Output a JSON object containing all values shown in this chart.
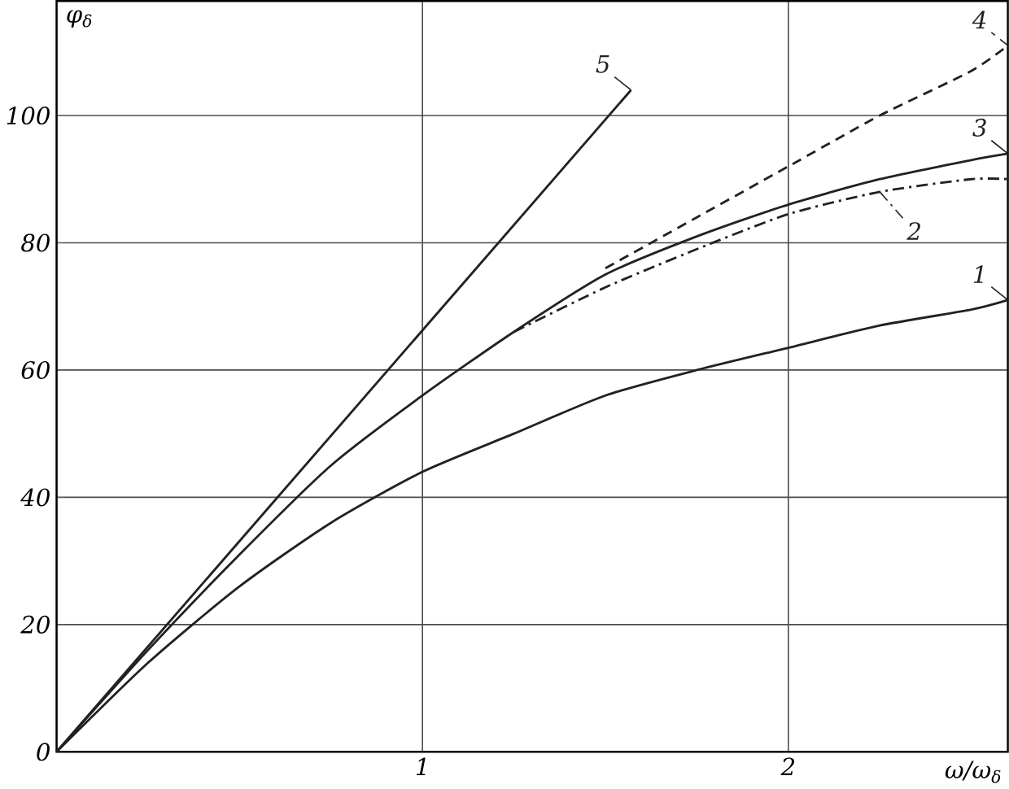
{
  "chart_data": {
    "type": "line",
    "xlabel": "ω/ω$_{δ}$",
    "ylabel": "φ$_{δ}$",
    "xlim": [
      0,
      2.6
    ],
    "ylim": [
      0,
      118
    ],
    "xticks": [
      {
        "value": 0,
        "label": null
      },
      1,
      2
    ],
    "yticks": [
      0,
      20,
      40,
      60,
      80,
      100
    ],
    "grid": true,
    "series": [
      {
        "name": "1",
        "color": "#222222",
        "line_style": "solid",
        "x": [
          0,
          0.25,
          0.5,
          0.75,
          1,
          1.25,
          1.5,
          1.75,
          2,
          2.25,
          2.5,
          2.6
        ],
        "values": [
          0,
          14,
          26,
          36,
          44,
          50,
          56,
          60,
          63.5,
          67,
          69.5,
          71
        ]
      },
      {
        "name": "2",
        "color": "#222222",
        "line_style": "dashdot",
        "x": [
          1.25,
          1.5,
          1.75,
          2,
          2.25,
          2.5,
          2.6
        ],
        "values": [
          66,
          73,
          79,
          84.5,
          88,
          90,
          90
        ]
      },
      {
        "name": "3",
        "color": "#222222",
        "line_style": "solid",
        "x": [
          0,
          0.25,
          0.5,
          0.75,
          1,
          1.25,
          1.5,
          1.75,
          2,
          2.25,
          2.5,
          2.6
        ],
        "values": [
          0,
          16,
          31,
          45,
          56,
          66,
          75,
          81,
          86,
          90,
          93,
          94
        ]
      },
      {
        "name": "4",
        "color": "#222222",
        "line_style": "dashed",
        "x": [
          1.5,
          1.75,
          2,
          2.25,
          2.5,
          2.6
        ],
        "values": [
          76,
          84,
          92,
          100,
          107,
          111
        ]
      },
      {
        "name": "5",
        "color": "#222222",
        "line_style": "solid",
        "x": [
          0,
          1.57
        ],
        "values": [
          0,
          104
        ]
      }
    ]
  }
}
